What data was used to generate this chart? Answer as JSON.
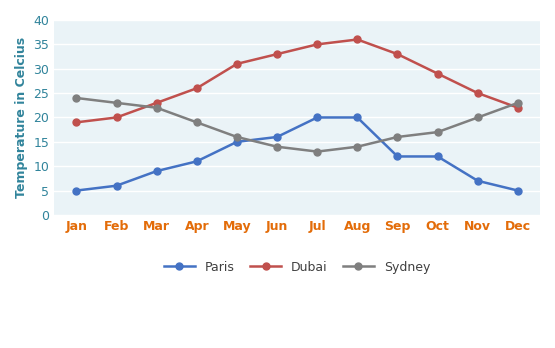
{
  "months": [
    "Jan",
    "Feb",
    "Mar",
    "Apr",
    "May",
    "Jun",
    "Jul",
    "Aug",
    "Sep",
    "Oct",
    "Nov",
    "Dec"
  ],
  "paris": [
    5,
    6,
    9,
    11,
    15,
    16,
    20,
    20,
    12,
    12,
    7,
    5
  ],
  "dubai": [
    19,
    20,
    23,
    26,
    31,
    33,
    35,
    36,
    33,
    29,
    25,
    22
  ],
  "sydney": [
    24,
    23,
    22,
    19,
    16,
    14,
    13,
    14,
    16,
    17,
    20,
    23
  ],
  "paris_color": "#4472C4",
  "dubai_color": "#C0504D",
  "sydney_color": "#7F7F7F",
  "xtick_color": "#E36C09",
  "ytick_color": "#31849B",
  "ylabel_color": "#31849B",
  "ylabel": "Temperature in Celcius",
  "ylim": [
    0,
    40
  ],
  "yticks": [
    0,
    5,
    10,
    15,
    20,
    25,
    30,
    35,
    40
  ],
  "background_color": "#FFFFFF",
  "plot_bg_color": "#EAF3F7",
  "grid_color": "#FFFFFF",
  "marker": "o",
  "linewidth": 1.8,
  "markersize": 5,
  "legend_labels": [
    "Paris",
    "Dubai",
    "Sydney"
  ],
  "legend_text_color": "#404040"
}
